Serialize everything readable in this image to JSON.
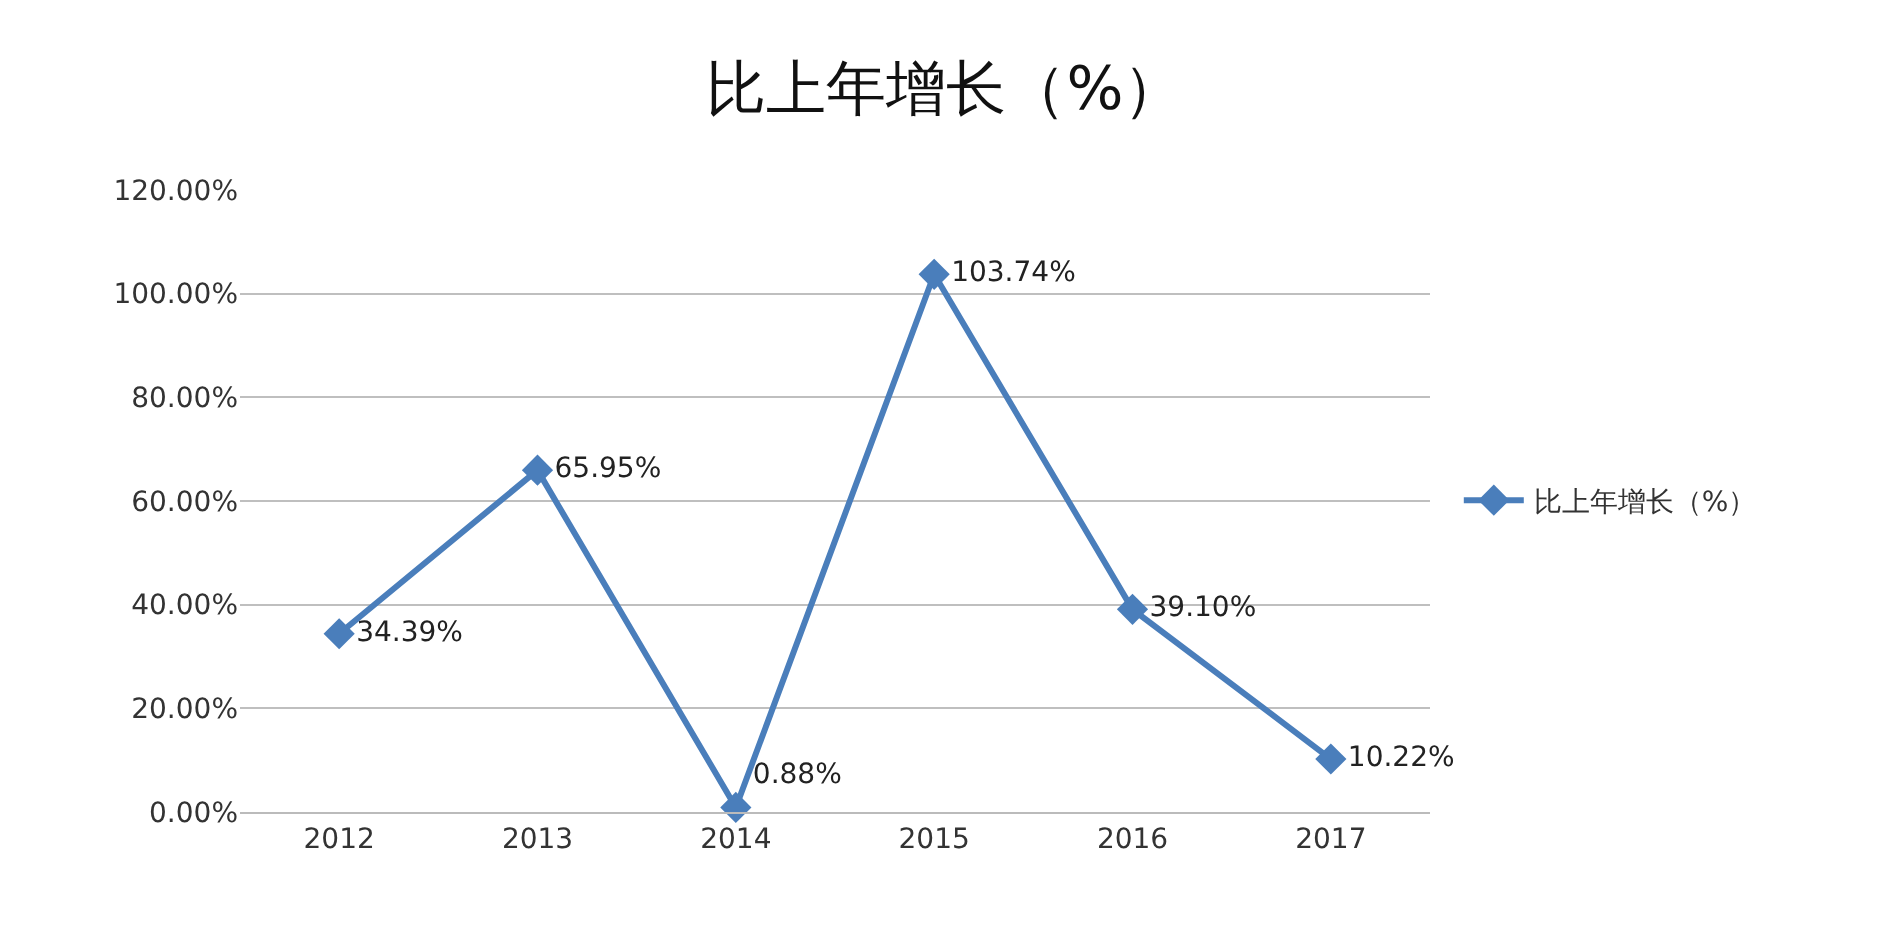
{
  "chart_data": {
    "type": "line",
    "title": "比上年增长（%）",
    "categories": [
      "2012",
      "2013",
      "2014",
      "2015",
      "2016",
      "2017"
    ],
    "series": [
      {
        "name": "比上年增长（%）",
        "color": "#4a7ebb",
        "values": [
          34.39,
          65.95,
          0.88,
          103.74,
          39.1,
          10.22
        ],
        "value_labels": [
          "34.39%",
          "65.95%",
          "0.88%",
          "103.74%",
          "39.10%",
          "10.22%"
        ]
      }
    ],
    "ylim": [
      0,
      120
    ],
    "yticks": [
      {
        "value": 0,
        "label": "0.00%"
      },
      {
        "value": 20,
        "label": "20.00%"
      },
      {
        "value": 40,
        "label": "40.00%"
      },
      {
        "value": 60,
        "label": "60.00%"
      },
      {
        "value": 80,
        "label": "80.00%"
      },
      {
        "value": 100,
        "label": "100.00%"
      },
      {
        "value": 120,
        "label": "120.00%"
      }
    ],
    "grid": "y",
    "legend": "right",
    "marker": "diamond",
    "line_style": "solid"
  }
}
